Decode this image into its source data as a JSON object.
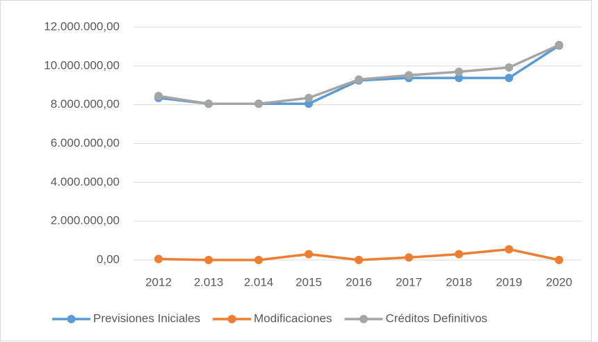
{
  "chart_data": {
    "type": "line",
    "categories": [
      "2012",
      "2.013",
      "2.014",
      "2015",
      "2016",
      "2017",
      "2018",
      "2019",
      "2020"
    ],
    "series": [
      {
        "name": "Previsiones Iniciales",
        "color": "#5b9bd5",
        "values": [
          8350000,
          8050000,
          8050000,
          8050000,
          9250000,
          9380000,
          9380000,
          9380000,
          11050000
        ]
      },
      {
        "name": "Modificaciones",
        "color": "#ed7d31",
        "values": [
          50000,
          0,
          0,
          300000,
          0,
          130000,
          300000,
          550000,
          0
        ]
      },
      {
        "name": "Créditos Definitivos",
        "color": "#a5a5a5",
        "values": [
          8450000,
          8050000,
          8050000,
          8350000,
          9300000,
          9520000,
          9700000,
          9920000,
          11080000
        ]
      }
    ],
    "ylim": [
      0,
      12000000
    ],
    "yticks": [
      {
        "value": 0,
        "label": "0,00"
      },
      {
        "value": 2000000,
        "label": "2.000.000,00"
      },
      {
        "value": 4000000,
        "label": "4.000.000,00"
      },
      {
        "value": 6000000,
        "label": "6.000.000,00"
      },
      {
        "value": 8000000,
        "label": "8.000.000,00"
      },
      {
        "value": 10000000,
        "label": "10.000.000,00"
      },
      {
        "value": 12000000,
        "label": "12.000.000,00"
      }
    ],
    "grid": true,
    "legend": "bottom"
  }
}
